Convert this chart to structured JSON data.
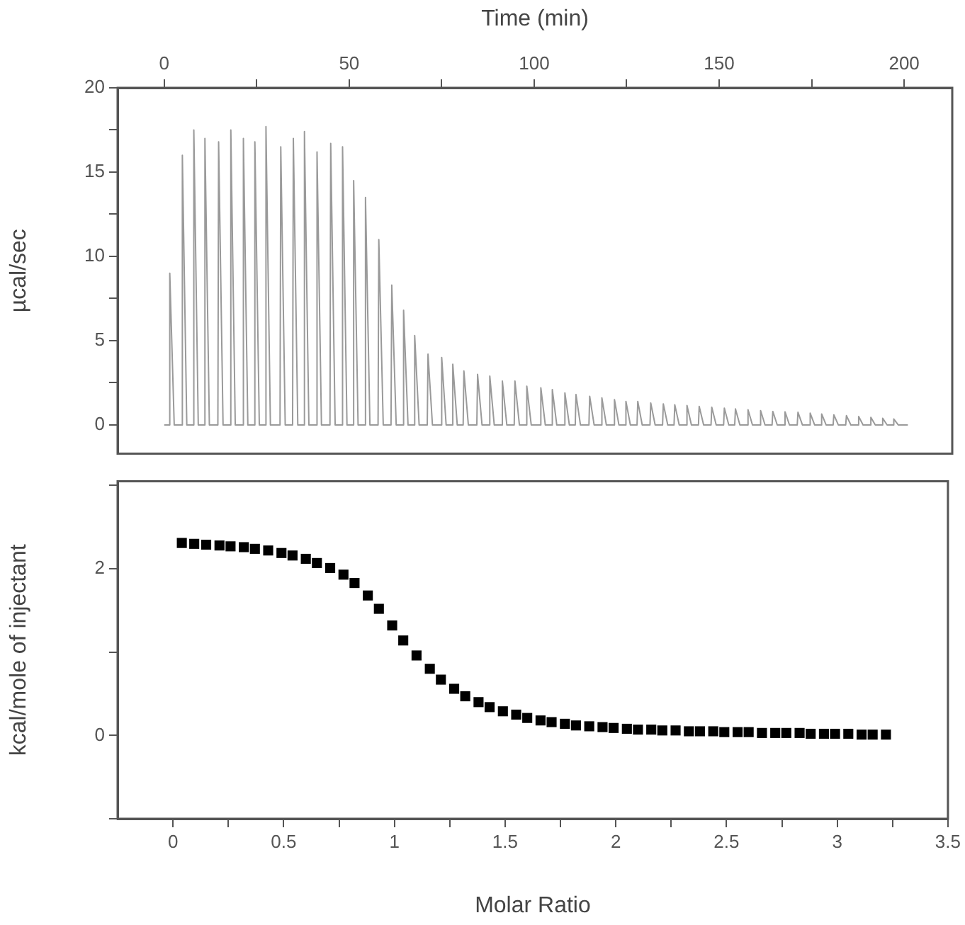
{
  "chart_data": [
    {
      "type": "line",
      "xlabel": "Time (min)",
      "ylabel": "µcal/sec",
      "xlim": [
        -12.6,
        213
      ],
      "xticks": [
        0,
        {
          "value": 25,
          "label": null
        },
        50,
        {
          "value": 75,
          "label": null
        },
        100,
        {
          "value": 125,
          "label": null
        },
        150,
        {
          "value": 175,
          "label": null
        },
        200
      ],
      "ylim": [
        -1.7,
        20
      ],
      "yticks": [
        0,
        {
          "value": 2.5,
          "label": null
        },
        5,
        {
          "value": 7.5,
          "label": null
        },
        10,
        {
          "value": 12.5,
          "label": null
        },
        15,
        {
          "value": 17.5,
          "label": null
        },
        20
      ],
      "grid": false,
      "legend": false,
      "marker": "none",
      "series": [
        {
          "color": "#9a9a9a",
          "x": [
            0,
            1.3,
            1.5,
            2.7,
            4.7,
            4.9,
            6.1,
            7.8,
            8,
            9.2,
            10.8,
            11,
            12.2,
            14.5,
            14.7,
            15.9,
            17.8,
            18,
            19.2,
            21.2,
            21.4,
            22.6,
            24.3,
            24.5,
            25.7,
            27.3,
            27.5,
            28.7,
            31.3,
            31.5,
            32.7,
            34.7,
            34.9,
            36.1,
            37.7,
            37.9,
            39.1,
            41.1,
            41.3,
            42.5,
            44.8,
            45,
            46.2,
            48,
            48.2,
            49.4,
            51,
            51.2,
            52.4,
            54.2,
            54.4,
            55.6,
            57.8,
            58,
            59.2,
            61.3,
            61.5,
            62.7,
            64.5,
            64.7,
            65.9,
            67.5,
            67.7,
            68.9,
            71.1,
            71.3,
            72.5,
            74.8,
            75,
            76.2,
            77.8,
            78,
            79.2,
            80.8,
            81,
            82.2,
            84.5,
            84.7,
            85.9,
            87.8,
            88,
            89.2,
            91.2,
            91.4,
            92.6,
            94.6,
            94.8,
            96,
            97.8,
            98,
            99.2,
            101.6,
            101.8,
            103,
            104.7,
            104.9,
            106.1,
            108.1,
            108.3,
            109.5,
            111.1,
            111.3,
            112.5,
            114.8,
            115,
            116.2,
            118.1,
            118.3,
            119.5,
            121.5,
            121.7,
            122.9,
            124.6,
            124.8,
            126,
            127.8,
            128,
            129.2,
            131.3,
            131.5,
            132.7,
            134.7,
            134.9,
            136.1,
            137.8,
            138,
            139.2,
            141.1,
            141.3,
            142.5,
            144.4,
            144.6,
            145.8,
            147.8,
            148,
            149.2,
            151.2,
            151.4,
            152.6,
            154.2,
            154.4,
            155.6,
            157.6,
            157.8,
            159,
            161,
            161.2,
            162.4,
            164.3,
            164.5,
            165.7,
            167.6,
            167.8,
            169,
            171.1,
            171.3,
            172.5,
            174.4,
            174.6,
            175.8,
            177.5,
            177.7,
            178.9,
            180.8,
            181,
            182.2,
            184.2,
            184.4,
            185.6,
            187.5,
            187.7,
            188.9,
            190.8,
            191,
            192.2,
            194,
            194.2,
            195.4,
            197,
            197.2,
            198.4,
            201
          ],
          "values": [
            0,
            0,
            9,
            0,
            0,
            16,
            0,
            0,
            17.5,
            0,
            0,
            17,
            0,
            0,
            16.8,
            0,
            0,
            17.5,
            0,
            0,
            17,
            0,
            0,
            16.8,
            0,
            0,
            17.7,
            0,
            0,
            16.5,
            0,
            0,
            17,
            0,
            0,
            17.4,
            0,
            0,
            16.2,
            0,
            0,
            16.7,
            0,
            0,
            16.5,
            0,
            0,
            14.5,
            0,
            0,
            13.5,
            0,
            0,
            11,
            0,
            0,
            8.3,
            0,
            0,
            6.8,
            0,
            0,
            5.3,
            0,
            0,
            4.2,
            0,
            0,
            4,
            0,
            0,
            3.6,
            0,
            0,
            3.2,
            0,
            0,
            3,
            0,
            0,
            2.9,
            0,
            0,
            2.6,
            0,
            0,
            2.6,
            0,
            0,
            2.3,
            0,
            0,
            2.2,
            0,
            0,
            2.1,
            0,
            0,
            1.9,
            0,
            0,
            1.8,
            0,
            0,
            1.7,
            0,
            0,
            1.6,
            0,
            0,
            1.5,
            0,
            0,
            1.4,
            0,
            0,
            1.4,
            0,
            0,
            1.3,
            0,
            0,
            1.25,
            0,
            0,
            1.2,
            0,
            0,
            1.15,
            0,
            0,
            1.1,
            0,
            0,
            1.05,
            0,
            0,
            1,
            0,
            0,
            0.95,
            0,
            0,
            0.9,
            0,
            0,
            0.85,
            0,
            0,
            0.8,
            0,
            0,
            0.78,
            0,
            0,
            0.75,
            0,
            0,
            0.7,
            0,
            0,
            0.65,
            0,
            0,
            0.6,
            0,
            0,
            0.55,
            0,
            0,
            0.5,
            0,
            0,
            0.45,
            0,
            0,
            0.4,
            0,
            0,
            0.35,
            0,
            0
          ]
        }
      ]
    },
    {
      "type": "scatter",
      "xlabel": "Molar Ratio",
      "ylabel": "kcal/mole of injectant",
      "xlim": [
        -0.25,
        3.5
      ],
      "xticks": [
        0,
        {
          "value": 0.25,
          "label": null
        },
        0.5,
        {
          "value": 0.75,
          "label": null
        },
        1,
        {
          "value": 1.25,
          "label": null
        },
        1.5,
        {
          "value": 1.75,
          "label": null
        },
        2,
        {
          "value": 2.25,
          "label": null
        },
        2.5,
        {
          "value": 2.75,
          "label": null
        },
        3,
        {
          "value": 3.25,
          "label": null
        },
        3.5
      ],
      "ylim": [
        -1,
        3.05
      ],
      "yticks": [
        {
          "value": -1,
          "label": null
        },
        0,
        {
          "value": 1,
          "label": null
        },
        2,
        {
          "value": 3,
          "label": null
        }
      ],
      "grid": false,
      "legend": false,
      "marker": "square",
      "x": [
        0.04,
        0.096,
        0.15,
        0.21,
        0.26,
        0.32,
        0.37,
        0.43,
        0.49,
        0.54,
        0.6,
        0.65,
        0.71,
        0.77,
        0.82,
        0.88,
        0.93,
        0.99,
        1.04,
        1.1,
        1.16,
        1.21,
        1.27,
        1.32,
        1.38,
        1.43,
        1.49,
        1.55,
        1.6,
        1.66,
        1.71,
        1.77,
        1.82,
        1.88,
        1.94,
        1.99,
        2.05,
        2.1,
        2.16,
        2.21,
        2.27,
        2.33,
        2.38,
        2.44,
        2.49,
        2.55,
        2.6,
        2.66,
        2.72,
        2.77,
        2.83,
        2.88,
        2.94,
        2.99,
        3.05,
        3.11,
        3.16,
        3.22
      ],
      "series": [
        {
          "color": "#000000",
          "values": [
            2.31,
            2.3,
            2.29,
            2.28,
            2.27,
            2.26,
            2.24,
            2.22,
            2.19,
            2.16,
            2.12,
            2.07,
            2.01,
            1.93,
            1.83,
            1.68,
            1.52,
            1.32,
            1.14,
            0.96,
            0.8,
            0.67,
            0.56,
            0.47,
            0.4,
            0.34,
            0.29,
            0.25,
            0.21,
            0.18,
            0.16,
            0.14,
            0.12,
            0.11,
            0.1,
            0.09,
            0.08,
            0.07,
            0.07,
            0.06,
            0.06,
            0.05,
            0.05,
            0.05,
            0.04,
            0.04,
            0.04,
            0.03,
            0.03,
            0.03,
            0.03,
            0.02,
            0.02,
            0.02,
            0.02,
            0.01,
            0.01,
            0.01
          ]
        }
      ]
    }
  ]
}
